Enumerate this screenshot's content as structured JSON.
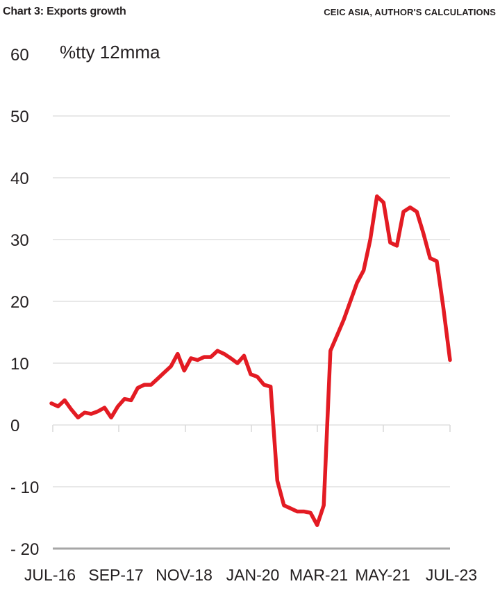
{
  "header": {
    "title": "Chart 3: Exports growth",
    "source": "CEIC ASIA, AUTHOR'S CALCULATIONS"
  },
  "colors": {
    "series": "#e31b23",
    "grid": "#d9d9d9",
    "baseline": "#a6a6a6",
    "text": "#231f20"
  },
  "chart_data": {
    "type": "line",
    "title": "Chart 3: Exports growth",
    "ylabel": "%tty 12mma",
    "xlabel": "",
    "ylim": [
      -20,
      60
    ],
    "yticks": [
      60,
      50,
      40,
      30,
      20,
      10,
      0,
      -10,
      -20
    ],
    "ytick_labels": [
      "60",
      "50",
      "40",
      "30",
      "20",
      "10",
      "0",
      "- 10",
      "- 20"
    ],
    "xtick_labels": [
      "JUL-16",
      "SEP-17",
      "NOV-18",
      "JAN-20",
      "MAR-21",
      "MAY-21",
      "JUL-23"
    ],
    "grid": true,
    "legend": "none",
    "series": [
      {
        "values": [
          3.5,
          3.0,
          4.0,
          2.5,
          1.2,
          2.0,
          1.8,
          2.2,
          2.8,
          1.2,
          3.0,
          4.2,
          4.0,
          6.0,
          6.5,
          6.5,
          7.5,
          8.5,
          9.5,
          11.5,
          8.8,
          10.8,
          10.5,
          11.0,
          11.0,
          12.0,
          11.5,
          10.8,
          10.0,
          11.2,
          8.2,
          7.8,
          6.5,
          6.2,
          -9.0,
          -13.0,
          -13.5,
          -14.0,
          -14.0,
          -14.2,
          -16.2,
          -13.0,
          12.0,
          14.5,
          17.0,
          20.0,
          23.0,
          25.0,
          30.0,
          37.0,
          36.0,
          29.5,
          29.0,
          34.5,
          35.2,
          34.5,
          31.0,
          27.0,
          26.5,
          19.0,
          10.5
        ]
      }
    ]
  }
}
